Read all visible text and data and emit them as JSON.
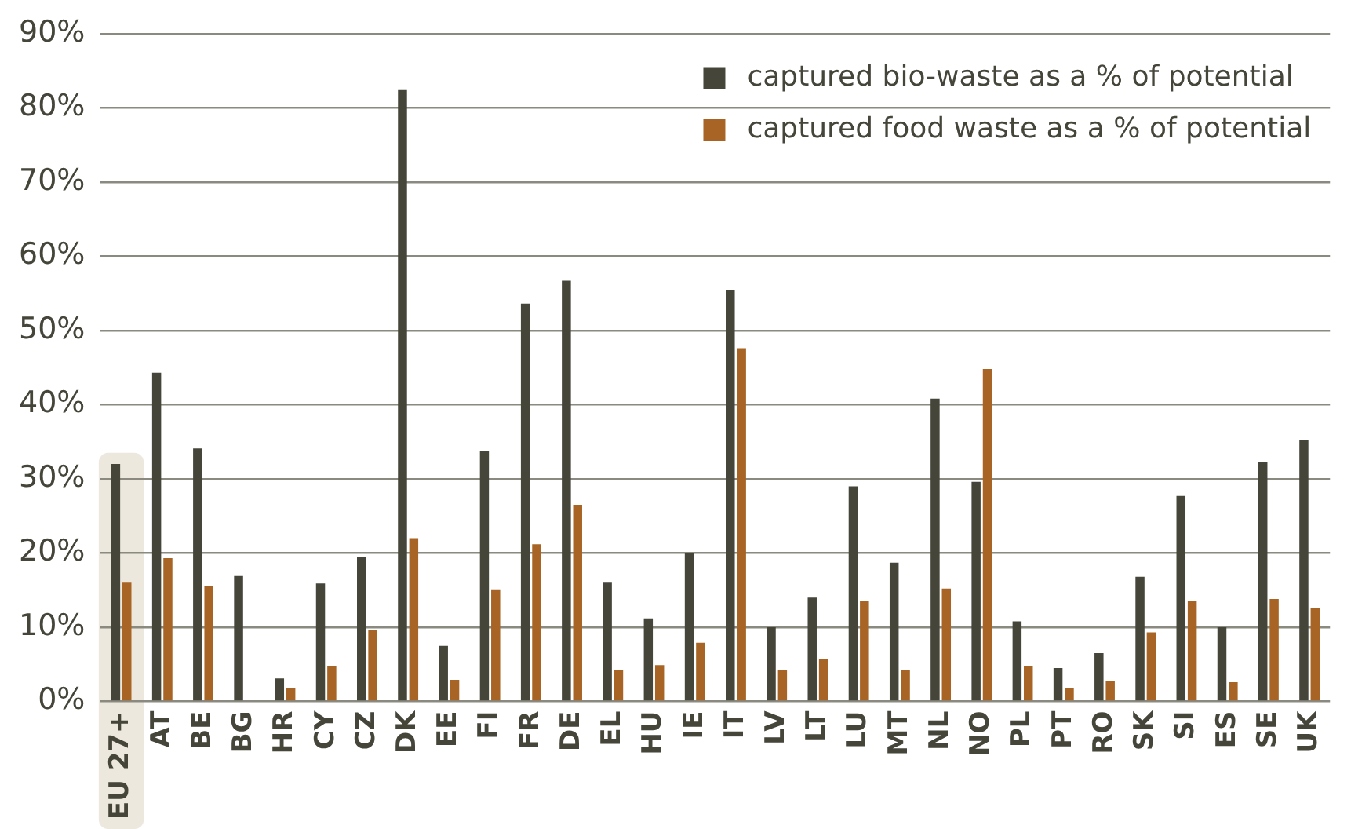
{
  "chart_data": {
    "type": "bar",
    "categories": [
      "EU 27+",
      "AT",
      "BE",
      "BG",
      "HR",
      "CY",
      "CZ",
      "DK",
      "EE",
      "FI",
      "FR",
      "DE",
      "EL",
      "HU",
      "IE",
      "IT",
      "LV",
      "LT",
      "LU",
      "MT",
      "NL",
      "NO",
      "PL",
      "PT",
      "RO",
      "SK",
      "SI",
      "ES",
      "SE",
      "UK"
    ],
    "series": [
      {
        "name": "captured bio-waste as a % of potential",
        "color": "#45453a",
        "values": [
          32,
          44.3,
          34.1,
          16.9,
          3.1,
          15.9,
          19.5,
          82.4,
          7.5,
          33.7,
          53.6,
          56.7,
          16,
          11.2,
          20,
          55.4,
          10,
          14,
          29,
          18.7,
          40.8,
          29.6,
          10.8,
          4.5,
          6.5,
          16.8,
          27.7,
          10,
          32.3,
          35.2
        ]
      },
      {
        "name": "captured food waste as a % of potential",
        "color": "#a86424",
        "values": [
          16,
          19.3,
          15.5,
          null,
          1.8,
          4.7,
          9.6,
          22,
          2.9,
          15.1,
          21.2,
          26.5,
          4.2,
          4.9,
          7.9,
          47.6,
          4.2,
          5.7,
          13.5,
          4.2,
          15.2,
          44.8,
          4.7,
          1.8,
          2.8,
          9.3,
          13.5,
          2.6,
          13.8,
          12.6
        ]
      }
    ],
    "ylim": [
      0,
      90
    ],
    "yticks": [
      {
        "value": 0,
        "label": "0%"
      },
      {
        "value": 10,
        "label": "10%"
      },
      {
        "value": 20,
        "label": "20%"
      },
      {
        "value": 30,
        "label": "30%"
      },
      {
        "value": 40,
        "label": "40%"
      },
      {
        "value": 50,
        "label": "50%"
      },
      {
        "value": 60,
        "label": "60%"
      },
      {
        "value": 70,
        "label": "70%"
      },
      {
        "value": 80,
        "label": "80%"
      },
      {
        "value": 90,
        "label": "90%"
      }
    ],
    "grid": "y",
    "legend": "top right",
    "bands": [
      {
        "axis": "x",
        "from": "EU 27+",
        "to": "EU 27+",
        "color": "#ede8de"
      }
    ]
  }
}
